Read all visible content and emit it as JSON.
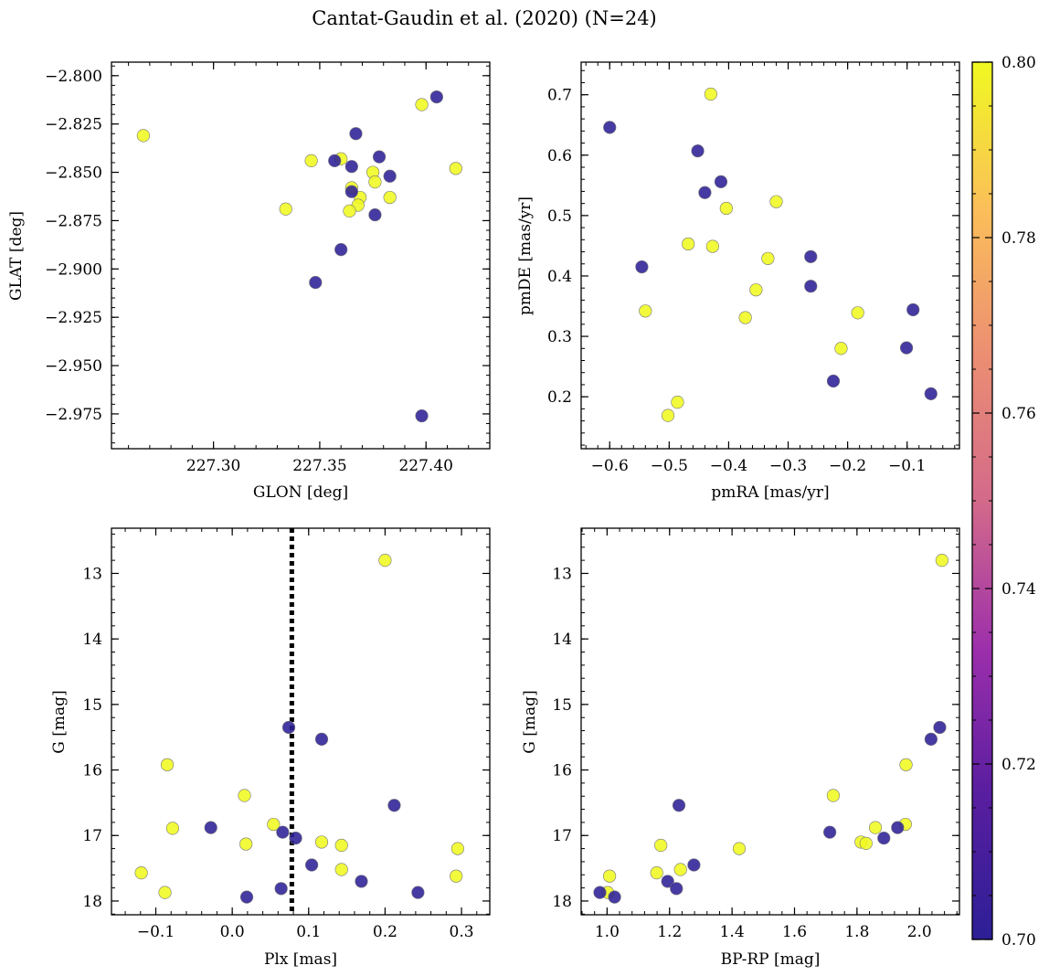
{
  "figure": {
    "title": "Cantat-Gaudin et al. (2020) (N=24)",
    "colors": {
      "high_membership": "#f0f921",
      "low_membership": "#2c1f96",
      "marker_edge": "#777777",
      "reference_line": "#000000"
    }
  },
  "chart_data": [
    {
      "id": "sky",
      "type": "scatter",
      "xlabel": "GLON [deg]",
      "ylabel": "GLAT [deg]",
      "xlim": [
        227.252,
        227.43
      ],
      "ylim": [
        -2.993,
        -2.793
      ],
      "xticks": [
        227.3,
        227.35,
        227.4
      ],
      "xtick_labels": [
        "227.30",
        "227.35",
        "227.40"
      ],
      "xminor_step": 0.01,
      "yticks": [
        -2.8,
        -2.825,
        -2.85,
        -2.875,
        -2.9,
        -2.925,
        -2.95,
        -2.975
      ],
      "ytick_labels": [
        "−2.800",
        "−2.825",
        "−2.850",
        "−2.875",
        "−2.900",
        "−2.925",
        "−2.950",
        "−2.975"
      ],
      "yminor_step": 0.005,
      "yinverted": false,
      "points": [
        {
          "x": 227.267,
          "y": -2.831,
          "c": 0.8
        },
        {
          "x": 227.398,
          "y": -2.815,
          "c": 0.8
        },
        {
          "x": 227.414,
          "y": -2.848,
          "c": 0.8
        },
        {
          "x": 227.346,
          "y": -2.844,
          "c": 0.8
        },
        {
          "x": 227.36,
          "y": -2.843,
          "c": 0.8
        },
        {
          "x": 227.375,
          "y": -2.85,
          "c": 0.8
        },
        {
          "x": 227.376,
          "y": -2.855,
          "c": 0.8
        },
        {
          "x": 227.365,
          "y": -2.858,
          "c": 0.8
        },
        {
          "x": 227.369,
          "y": -2.863,
          "c": 0.8
        },
        {
          "x": 227.383,
          "y": -2.863,
          "c": 0.8
        },
        {
          "x": 227.368,
          "y": -2.867,
          "c": 0.8
        },
        {
          "x": 227.364,
          "y": -2.87,
          "c": 0.8
        },
        {
          "x": 227.334,
          "y": -2.869,
          "c": 0.8
        },
        {
          "x": 227.405,
          "y": -2.811,
          "c": 0.7
        },
        {
          "x": 227.367,
          "y": -2.83,
          "c": 0.7
        },
        {
          "x": 227.378,
          "y": -2.842,
          "c": 0.7
        },
        {
          "x": 227.357,
          "y": -2.844,
          "c": 0.7
        },
        {
          "x": 227.365,
          "y": -2.847,
          "c": 0.7
        },
        {
          "x": 227.383,
          "y": -2.852,
          "c": 0.7
        },
        {
          "x": 227.365,
          "y": -2.86,
          "c": 0.7
        },
        {
          "x": 227.376,
          "y": -2.872,
          "c": 0.7
        },
        {
          "x": 227.36,
          "y": -2.89,
          "c": 0.7
        },
        {
          "x": 227.348,
          "y": -2.907,
          "c": 0.7
        },
        {
          "x": 227.398,
          "y": -2.976,
          "c": 0.7
        }
      ]
    },
    {
      "id": "proper-motion",
      "type": "scatter",
      "xlabel": "pmRA [mas/yr]",
      "ylabel": "pmDE [mas/yr]",
      "xlim": [
        -0.648,
        -0.012
      ],
      "ylim": [
        0.114,
        0.754
      ],
      "xticks": [
        -0.6,
        -0.5,
        -0.4,
        -0.3,
        -0.2,
        -0.1
      ],
      "xtick_labels": [
        "−0.6",
        "−0.5",
        "−0.4",
        "−0.3",
        "−0.2",
        "−0.1"
      ],
      "xminor_step": 0.02,
      "yticks": [
        0.2,
        0.3,
        0.4,
        0.5,
        0.6,
        0.7
      ],
      "ytick_labels": [
        "0.2",
        "0.3",
        "0.4",
        "0.5",
        "0.6",
        "0.7"
      ],
      "yminor_step": 0.02,
      "yinverted": false,
      "points": [
        {
          "x": -0.43,
          "y": 0.701,
          "c": 0.8
        },
        {
          "x": -0.404,
          "y": 0.512,
          "c": 0.8
        },
        {
          "x": -0.32,
          "y": 0.523,
          "c": 0.8
        },
        {
          "x": -0.468,
          "y": 0.453,
          "c": 0.8
        },
        {
          "x": -0.427,
          "y": 0.449,
          "c": 0.8
        },
        {
          "x": -0.334,
          "y": 0.429,
          "c": 0.8
        },
        {
          "x": -0.354,
          "y": 0.377,
          "c": 0.8
        },
        {
          "x": -0.54,
          "y": 0.342,
          "c": 0.8
        },
        {
          "x": -0.372,
          "y": 0.331,
          "c": 0.8
        },
        {
          "x": -0.183,
          "y": 0.339,
          "c": 0.8
        },
        {
          "x": -0.211,
          "y": 0.28,
          "c": 0.8
        },
        {
          "x": -0.486,
          "y": 0.191,
          "c": 0.8
        },
        {
          "x": -0.502,
          "y": 0.169,
          "c": 0.8
        },
        {
          "x": -0.6,
          "y": 0.646,
          "c": 0.7
        },
        {
          "x": -0.452,
          "y": 0.607,
          "c": 0.7
        },
        {
          "x": -0.44,
          "y": 0.538,
          "c": 0.7
        },
        {
          "x": -0.413,
          "y": 0.556,
          "c": 0.7
        },
        {
          "x": -0.546,
          "y": 0.415,
          "c": 0.7
        },
        {
          "x": -0.262,
          "y": 0.432,
          "c": 0.7
        },
        {
          "x": -0.262,
          "y": 0.383,
          "c": 0.7
        },
        {
          "x": -0.09,
          "y": 0.344,
          "c": 0.7
        },
        {
          "x": -0.101,
          "y": 0.281,
          "c": 0.7
        },
        {
          "x": -0.224,
          "y": 0.226,
          "c": 0.7
        },
        {
          "x": -0.06,
          "y": 0.205,
          "c": 0.7
        }
      ]
    },
    {
      "id": "plx-vs-g",
      "type": "scatter",
      "xlabel": "Plx [mas]",
      "ylabel": "G [mag]",
      "xlim": [
        -0.158,
        0.337
      ],
      "ylim": [
        18.21,
        12.31
      ],
      "xticks": [
        -0.1,
        0.0,
        0.1,
        0.2,
        0.3
      ],
      "xtick_labels": [
        "−0.1",
        "0.0",
        "0.1",
        "0.2",
        "0.3"
      ],
      "xminor_step": 0.02,
      "yticks": [
        13,
        14,
        15,
        16,
        17,
        18
      ],
      "ytick_labels": [
        "13",
        "14",
        "15",
        "16",
        "17",
        "18"
      ],
      "yminor_step": 0.2,
      "yinverted": true,
      "vline_x": 0.078,
      "points": [
        {
          "x": 0.2,
          "y": 12.8,
          "c": 0.8
        },
        {
          "x": -0.085,
          "y": 15.92,
          "c": 0.8
        },
        {
          "x": 0.016,
          "y": 16.39,
          "c": 0.8
        },
        {
          "x": -0.078,
          "y": 16.89,
          "c": 0.8
        },
        {
          "x": 0.054,
          "y": 16.83,
          "c": 0.8
        },
        {
          "x": 0.018,
          "y": 17.13,
          "c": 0.8
        },
        {
          "x": 0.117,
          "y": 17.1,
          "c": 0.8
        },
        {
          "x": 0.143,
          "y": 17.15,
          "c": 0.8
        },
        {
          "x": 0.295,
          "y": 17.2,
          "c": 0.8
        },
        {
          "x": 0.143,
          "y": 17.52,
          "c": 0.8
        },
        {
          "x": 0.293,
          "y": 17.62,
          "c": 0.8
        },
        {
          "x": -0.119,
          "y": 17.57,
          "c": 0.8
        },
        {
          "x": -0.088,
          "y": 17.87,
          "c": 0.8
        },
        {
          "x": 0.074,
          "y": 15.35,
          "c": 0.7
        },
        {
          "x": 0.117,
          "y": 15.53,
          "c": 0.7
        },
        {
          "x": 0.212,
          "y": 16.54,
          "c": 0.7
        },
        {
          "x": -0.028,
          "y": 16.88,
          "c": 0.7
        },
        {
          "x": 0.066,
          "y": 16.95,
          "c": 0.7
        },
        {
          "x": 0.083,
          "y": 17.04,
          "c": 0.7
        },
        {
          "x": 0.104,
          "y": 17.45,
          "c": 0.7
        },
        {
          "x": 0.169,
          "y": 17.7,
          "c": 0.7
        },
        {
          "x": 0.064,
          "y": 17.81,
          "c": 0.7
        },
        {
          "x": 0.243,
          "y": 17.87,
          "c": 0.7
        },
        {
          "x": 0.019,
          "y": 17.94,
          "c": 0.7
        }
      ]
    },
    {
      "id": "cmd",
      "type": "scatter",
      "xlabel": "BP-RP [mag]",
      "ylabel": "G [mag]",
      "xlim": [
        0.917,
        2.128
      ],
      "ylim": [
        18.21,
        12.31
      ],
      "xticks": [
        1.0,
        1.2,
        1.4,
        1.6,
        1.8,
        2.0
      ],
      "xtick_labels": [
        "1.0",
        "1.2",
        "1.4",
        "1.6",
        "1.8",
        "2.0"
      ],
      "xminor_step": 0.04,
      "yticks": [
        13,
        14,
        15,
        16,
        17,
        18
      ],
      "ytick_labels": [
        "13",
        "14",
        "15",
        "16",
        "17",
        "18"
      ],
      "yminor_step": 0.2,
      "yinverted": true,
      "points": [
        {
          "x": 2.072,
          "y": 12.8,
          "c": 0.8
        },
        {
          "x": 1.957,
          "y": 15.92,
          "c": 0.8
        },
        {
          "x": 1.724,
          "y": 16.39,
          "c": 0.8
        },
        {
          "x": 1.172,
          "y": 17.15,
          "c": 0.8
        },
        {
          "x": 1.423,
          "y": 17.2,
          "c": 0.8
        },
        {
          "x": 1.859,
          "y": 16.88,
          "c": 0.8
        },
        {
          "x": 1.955,
          "y": 16.83,
          "c": 0.8
        },
        {
          "x": 1.813,
          "y": 17.1,
          "c": 0.8
        },
        {
          "x": 1.829,
          "y": 17.12,
          "c": 0.8
        },
        {
          "x": 1.159,
          "y": 17.57,
          "c": 0.8
        },
        {
          "x": 1.235,
          "y": 17.52,
          "c": 0.8
        },
        {
          "x": 1.008,
          "y": 17.62,
          "c": 0.8
        },
        {
          "x": 1.002,
          "y": 17.87,
          "c": 0.8
        },
        {
          "x": 2.065,
          "y": 15.35,
          "c": 0.7
        },
        {
          "x": 2.037,
          "y": 15.53,
          "c": 0.7
        },
        {
          "x": 1.23,
          "y": 16.54,
          "c": 0.7
        },
        {
          "x": 1.713,
          "y": 16.95,
          "c": 0.7
        },
        {
          "x": 1.93,
          "y": 16.88,
          "c": 0.7
        },
        {
          "x": 1.886,
          "y": 17.04,
          "c": 0.7
        },
        {
          "x": 1.278,
          "y": 17.45,
          "c": 0.7
        },
        {
          "x": 1.194,
          "y": 17.7,
          "c": 0.7
        },
        {
          "x": 1.222,
          "y": 17.81,
          "c": 0.7
        },
        {
          "x": 0.977,
          "y": 17.87,
          "c": 0.7
        },
        {
          "x": 1.024,
          "y": 17.94,
          "c": 0.7
        }
      ]
    }
  ],
  "colorbar": {
    "vmin": 0.7,
    "vmax": 0.8,
    "ticks": [
      0.7,
      0.72,
      0.74,
      0.76,
      0.78,
      0.8
    ],
    "tick_labels": [
      "0.70",
      "0.72",
      "0.74",
      "0.76",
      "0.78",
      "0.80"
    ],
    "minor_step": 0.005,
    "colormap": "plasma"
  }
}
